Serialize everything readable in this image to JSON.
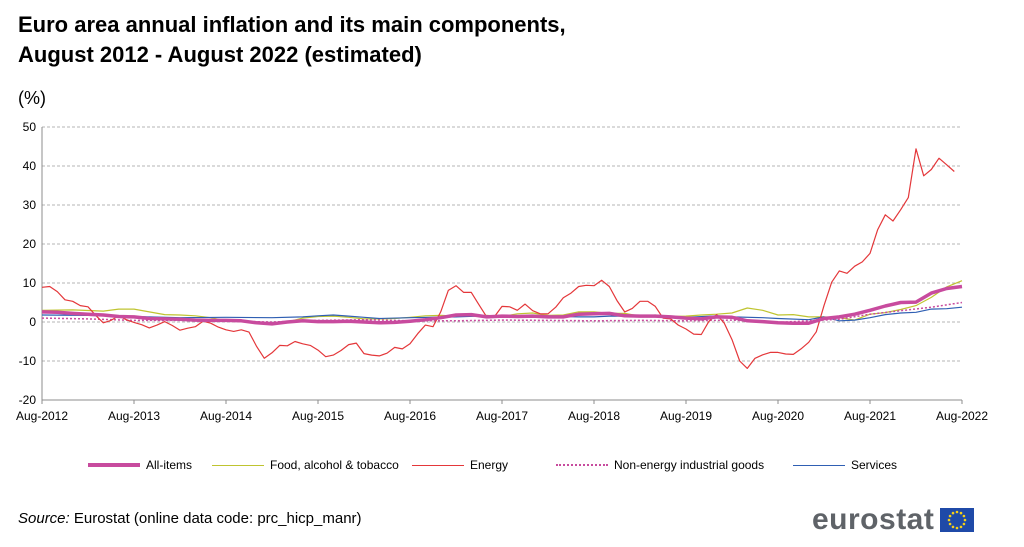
{
  "page": {
    "title_line1": "Euro area annual inflation and its main components,",
    "title_line2": "August 2012 - August 2022 (estimated)",
    "unit": "(%)",
    "source_label": "Source:",
    "source_text": " Eurostat (online data code: prc_hicp_manr)",
    "brand": "eurostat"
  },
  "chart_data": {
    "type": "line",
    "title": "Euro area annual inflation and its main components, August 2012 - August 2022 (estimated)",
    "ylabel": "(%)",
    "xlabel": "",
    "ylim": [
      -20,
      50
    ],
    "yticks": [
      -20,
      -10,
      0,
      10,
      20,
      30,
      40,
      50
    ],
    "grid": true,
    "x_range": [
      0,
      120
    ],
    "xticks": [
      {
        "index": 0,
        "label": "Aug-2012"
      },
      {
        "index": 12,
        "label": "Aug-2013"
      },
      {
        "index": 24,
        "label": "Aug-2014"
      },
      {
        "index": 36,
        "label": "Aug-2015"
      },
      {
        "index": 48,
        "label": "Aug-2016"
      },
      {
        "index": 60,
        "label": "Aug-2017"
      },
      {
        "index": 72,
        "label": "Aug-2018"
      },
      {
        "index": 84,
        "label": "Aug-2019"
      },
      {
        "index": 96,
        "label": "Aug-2020"
      },
      {
        "index": 108,
        "label": "Aug-2021"
      },
      {
        "index": 120,
        "label": "Aug-2022"
      }
    ],
    "series": [
      {
        "name": "All-items",
        "color": "#c84b9e",
        "style": "solid-thick",
        "points": [
          [
            0,
            2.6
          ],
          [
            2,
            2.5
          ],
          [
            4,
            2.2
          ],
          [
            6,
            2.0
          ],
          [
            8,
            1.8
          ],
          [
            10,
            1.4
          ],
          [
            12,
            1.3
          ],
          [
            14,
            0.9
          ],
          [
            16,
            0.8
          ],
          [
            18,
            0.7
          ],
          [
            20,
            0.5
          ],
          [
            22,
            0.4
          ],
          [
            24,
            0.4
          ],
          [
            26,
            0.3
          ],
          [
            28,
            -0.2
          ],
          [
            30,
            -0.5
          ],
          [
            32,
            0.0
          ],
          [
            34,
            0.3
          ],
          [
            36,
            0.1
          ],
          [
            38,
            0.1
          ],
          [
            40,
            0.2
          ],
          [
            42,
            0.0
          ],
          [
            44,
            -0.2
          ],
          [
            46,
            -0.1
          ],
          [
            48,
            0.2
          ],
          [
            50,
            0.6
          ],
          [
            52,
            1.1
          ],
          [
            54,
            1.8
          ],
          [
            56,
            1.9
          ],
          [
            58,
            1.3
          ],
          [
            60,
            1.5
          ],
          [
            62,
            1.4
          ],
          [
            64,
            1.5
          ],
          [
            66,
            1.3
          ],
          [
            68,
            1.3
          ],
          [
            70,
            2.0
          ],
          [
            72,
            2.1
          ],
          [
            74,
            2.2
          ],
          [
            76,
            1.6
          ],
          [
            78,
            1.5
          ],
          [
            80,
            1.5
          ],
          [
            82,
            1.3
          ],
          [
            84,
            1.0
          ],
          [
            86,
            0.8
          ],
          [
            88,
            1.3
          ],
          [
            90,
            1.2
          ],
          [
            92,
            0.3
          ],
          [
            94,
            0.1
          ],
          [
            96,
            -0.2
          ],
          [
            98,
            -0.3
          ],
          [
            100,
            -0.3
          ],
          [
            102,
            0.9
          ],
          [
            104,
            1.3
          ],
          [
            106,
            2.0
          ],
          [
            108,
            3.0
          ],
          [
            110,
            4.1
          ],
          [
            112,
            5.0
          ],
          [
            114,
            5.1
          ],
          [
            116,
            7.4
          ],
          [
            118,
            8.6
          ],
          [
            120,
            9.1
          ]
        ]
      },
      {
        "name": "Food, alcohol & tobacco",
        "color": "#bfc430",
        "style": "solid",
        "points": [
          [
            0,
            3.0
          ],
          [
            4,
            3.1
          ],
          [
            8,
            2.8
          ],
          [
            10,
            3.3
          ],
          [
            12,
            3.3
          ],
          [
            14,
            2.6
          ],
          [
            16,
            1.9
          ],
          [
            18,
            1.8
          ],
          [
            20,
            1.6
          ],
          [
            22,
            1.1
          ],
          [
            24,
            0.3
          ],
          [
            26,
            0.3
          ],
          [
            28,
            -0.1
          ],
          [
            30,
            -0.5
          ],
          [
            32,
            0.0
          ],
          [
            34,
            1.0
          ],
          [
            36,
            1.4
          ],
          [
            38,
            1.5
          ],
          [
            40,
            1.2
          ],
          [
            42,
            0.8
          ],
          [
            44,
            0.8
          ],
          [
            46,
            0.9
          ],
          [
            48,
            1.2
          ],
          [
            50,
            1.6
          ],
          [
            52,
            1.7
          ],
          [
            54,
            1.5
          ],
          [
            56,
            1.5
          ],
          [
            58,
            1.7
          ],
          [
            60,
            1.4
          ],
          [
            62,
            2.1
          ],
          [
            64,
            2.3
          ],
          [
            66,
            1.7
          ],
          [
            68,
            1.8
          ],
          [
            70,
            2.6
          ],
          [
            72,
            2.6
          ],
          [
            74,
            2.2
          ],
          [
            76,
            2.2
          ],
          [
            78,
            1.5
          ],
          [
            80,
            1.8
          ],
          [
            82,
            1.4
          ],
          [
            84,
            1.5
          ],
          [
            86,
            1.8
          ],
          [
            88,
            2.0
          ],
          [
            90,
            2.3
          ],
          [
            92,
            3.6
          ],
          [
            94,
            3.0
          ],
          [
            96,
            1.8
          ],
          [
            98,
            1.9
          ],
          [
            100,
            1.3
          ],
          [
            102,
            1.3
          ],
          [
            104,
            1.1
          ],
          [
            106,
            0.5
          ],
          [
            108,
            2.0
          ],
          [
            110,
            2.4
          ],
          [
            112,
            3.2
          ],
          [
            114,
            4.2
          ],
          [
            116,
            6.3
          ],
          [
            118,
            9.0
          ],
          [
            120,
            10.6
          ]
        ]
      },
      {
        "name": "Energy",
        "color": "#e4373a",
        "style": "solid",
        "points": [
          [
            0,
            8.9
          ],
          [
            1,
            9.1
          ],
          [
            2,
            7.8
          ],
          [
            3,
            5.7
          ],
          [
            4,
            5.3
          ],
          [
            5,
            4.2
          ],
          [
            6,
            3.9
          ],
          [
            7,
            1.7
          ],
          [
            8,
            -0.2
          ],
          [
            9,
            0.4
          ],
          [
            10,
            1.6
          ],
          [
            11,
            0.6
          ],
          [
            12,
            -0.1
          ],
          [
            13,
            -0.7
          ],
          [
            14,
            -1.5
          ],
          [
            15,
            -0.8
          ],
          [
            16,
            0.1
          ],
          [
            17,
            -0.9
          ],
          [
            18,
            -2.1
          ],
          [
            19,
            -1.6
          ],
          [
            20,
            -1.2
          ],
          [
            21,
            0.2
          ],
          [
            22,
            -0.3
          ],
          [
            23,
            -1.3
          ],
          [
            24,
            -2.0
          ],
          [
            25,
            -2.4
          ],
          [
            26,
            -2.0
          ],
          [
            27,
            -2.6
          ],
          [
            28,
            -6.3
          ],
          [
            29,
            -9.3
          ],
          [
            30,
            -7.9
          ],
          [
            31,
            -6.0
          ],
          [
            32,
            -6.1
          ],
          [
            33,
            -5.0
          ],
          [
            34,
            -5.6
          ],
          [
            35,
            -6.0
          ],
          [
            36,
            -7.2
          ],
          [
            37,
            -8.9
          ],
          [
            38,
            -8.5
          ],
          [
            39,
            -7.3
          ],
          [
            40,
            -5.8
          ],
          [
            41,
            -5.4
          ],
          [
            42,
            -8.1
          ],
          [
            43,
            -8.5
          ],
          [
            44,
            -8.7
          ],
          [
            45,
            -8.0
          ],
          [
            46,
            -6.5
          ],
          [
            47,
            -6.9
          ],
          [
            48,
            -5.6
          ],
          [
            49,
            -3.0
          ],
          [
            50,
            -0.8
          ],
          [
            51,
            -1.2
          ],
          [
            52,
            2.6
          ],
          [
            53,
            8.1
          ],
          [
            54,
            9.3
          ],
          [
            55,
            7.6
          ],
          [
            56,
            7.6
          ],
          [
            57,
            4.4
          ],
          [
            58,
            1.3
          ],
          [
            59,
            1.3
          ],
          [
            60,
            4.0
          ],
          [
            61,
            3.9
          ],
          [
            62,
            3.0
          ],
          [
            63,
            4.6
          ],
          [
            64,
            2.9
          ],
          [
            65,
            2.1
          ],
          [
            66,
            2.1
          ],
          [
            67,
            3.8
          ],
          [
            68,
            6.2
          ],
          [
            69,
            7.4
          ],
          [
            70,
            9.1
          ],
          [
            71,
            9.4
          ],
          [
            72,
            9.3
          ],
          [
            73,
            10.7
          ],
          [
            74,
            9.1
          ],
          [
            75,
            5.5
          ],
          [
            76,
            2.6
          ],
          [
            77,
            3.5
          ],
          [
            78,
            5.3
          ],
          [
            79,
            5.3
          ],
          [
            80,
            4.0
          ],
          [
            81,
            1.0
          ],
          [
            82,
            0.8
          ],
          [
            83,
            -0.8
          ],
          [
            84,
            -1.8
          ],
          [
            85,
            -3.1
          ],
          [
            86,
            -3.2
          ],
          [
            87,
            0.2
          ],
          [
            88,
            1.9
          ],
          [
            89,
            -0.3
          ],
          [
            90,
            -4.5
          ],
          [
            91,
            -10.0
          ],
          [
            92,
            -11.9
          ],
          [
            93,
            -9.3
          ],
          [
            94,
            -8.4
          ],
          [
            95,
            -7.8
          ],
          [
            96,
            -7.8
          ],
          [
            97,
            -8.2
          ],
          [
            98,
            -8.3
          ],
          [
            99,
            -6.9
          ],
          [
            100,
            -5.2
          ],
          [
            101,
            -2.5
          ],
          [
            102,
            4.2
          ],
          [
            103,
            10.2
          ],
          [
            104,
            13.1
          ],
          [
            105,
            12.5
          ],
          [
            106,
            14.3
          ],
          [
            107,
            15.4
          ],
          [
            108,
            17.6
          ],
          [
            109,
            23.7
          ],
          [
            110,
            27.5
          ],
          [
            111,
            25.9
          ],
          [
            112,
            28.8
          ],
          [
            113,
            31.9
          ],
          [
            114,
            44.4
          ],
          [
            115,
            37.5
          ],
          [
            116,
            39.1
          ],
          [
            117,
            42.0
          ],
          [
            118,
            40.3
          ],
          [
            119,
            38.6
          ]
        ]
      },
      {
        "name": "Non-energy industrial goods",
        "color": "#c84b9e",
        "style": "dotted",
        "points": [
          [
            0,
            1.0
          ],
          [
            6,
            0.8
          ],
          [
            12,
            0.4
          ],
          [
            18,
            0.4
          ],
          [
            24,
            0.2
          ],
          [
            30,
            0.0
          ],
          [
            36,
            0.4
          ],
          [
            42,
            0.6
          ],
          [
            48,
            0.3
          ],
          [
            54,
            0.3
          ],
          [
            60,
            0.5
          ],
          [
            66,
            0.4
          ],
          [
            72,
            0.3
          ],
          [
            78,
            0.4
          ],
          [
            84,
            0.3
          ],
          [
            90,
            0.5
          ],
          [
            96,
            -0.1
          ],
          [
            100,
            0.3
          ],
          [
            104,
            0.7
          ],
          [
            108,
            2.0
          ],
          [
            112,
            2.9
          ],
          [
            116,
            3.8
          ],
          [
            120,
            5.0
          ]
        ]
      },
      {
        "name": "Services",
        "color": "#2f5fb3",
        "style": "solid",
        "points": [
          [
            0,
            1.8
          ],
          [
            6,
            1.7
          ],
          [
            12,
            1.4
          ],
          [
            18,
            1.1
          ],
          [
            24,
            1.2
          ],
          [
            30,
            1.1
          ],
          [
            34,
            1.3
          ],
          [
            36,
            1.6
          ],
          [
            38,
            1.8
          ],
          [
            40,
            1.5
          ],
          [
            42,
            1.2
          ],
          [
            44,
            0.9
          ],
          [
            48,
            1.1
          ],
          [
            54,
            1.3
          ],
          [
            58,
            1.6
          ],
          [
            60,
            1.5
          ],
          [
            66,
            1.5
          ],
          [
            70,
            1.3
          ],
          [
            72,
            1.3
          ],
          [
            74,
            1.5
          ],
          [
            78,
            1.5
          ],
          [
            82,
            1.2
          ],
          [
            84,
            1.2
          ],
          [
            88,
            1.6
          ],
          [
            90,
            1.3
          ],
          [
            94,
            1.1
          ],
          [
            96,
            0.9
          ],
          [
            100,
            0.6
          ],
          [
            102,
            1.3
          ],
          [
            104,
            0.3
          ],
          [
            106,
            0.5
          ],
          [
            108,
            1.1
          ],
          [
            110,
            1.9
          ],
          [
            112,
            2.3
          ],
          [
            114,
            2.5
          ],
          [
            116,
            3.3
          ],
          [
            118,
            3.4
          ],
          [
            120,
            3.8
          ]
        ]
      }
    ],
    "legend_position": "bottom"
  }
}
